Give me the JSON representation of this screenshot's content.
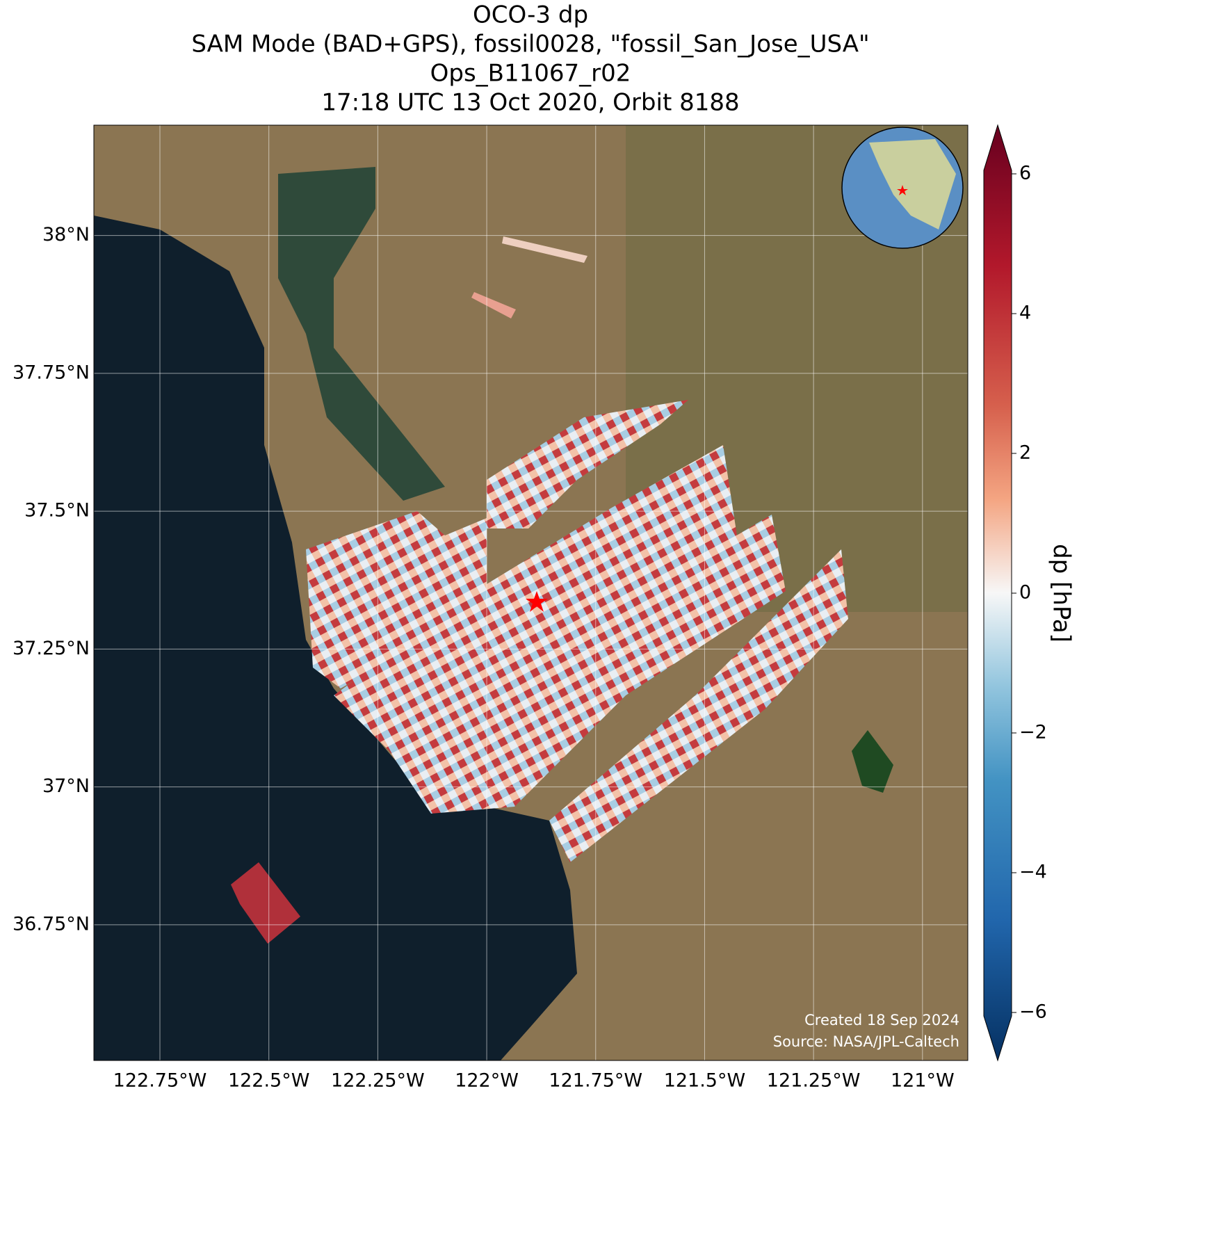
{
  "title": [
    "OCO-3 dp",
    "SAM Mode (BAD+GPS), fossil0028, \"fossil_San_Jose_USA\"",
    "Ops_B11067_r02",
    "17:18 UTC 13 Oct 2020, Orbit 8188"
  ],
  "map": {
    "xlim": [
      -122.9016,
      -120.896
    ],
    "ylim": [
      36.504,
      38.2
    ],
    "xticks": [
      {
        "value": -122.75,
        "label": "122.75°W"
      },
      {
        "value": -122.5,
        "label": "122.5°W"
      },
      {
        "value": -122.25,
        "label": "122.25°W"
      },
      {
        "value": -122,
        "label": "122°W"
      },
      {
        "value": -121.75,
        "label": "121.75°W"
      },
      {
        "value": -121.5,
        "label": "121.5°W"
      },
      {
        "value": -121.25,
        "label": "121.25°W"
      },
      {
        "value": -121,
        "label": "121°W"
      }
    ],
    "yticks": [
      {
        "value": 38,
        "label": "38°N"
      },
      {
        "value": 37.75,
        "label": "37.75°N"
      },
      {
        "value": 37.5,
        "label": "37.5°N"
      },
      {
        "value": 37.25,
        "label": "37.25°N"
      },
      {
        "value": 37,
        "label": "37°N"
      },
      {
        "value": 36.75,
        "label": "36.75°N"
      }
    ],
    "grid": true
  },
  "colorbar": {
    "label": "dp [hPa]",
    "lim": [
      -6,
      6
    ],
    "ticks": [
      {
        "value": -6,
        "label": "−6"
      },
      {
        "value": -4,
        "label": "−4"
      },
      {
        "value": -2,
        "label": "−2"
      },
      0,
      2,
      4,
      6
    ]
  },
  "credit": [
    "Created 18 Sep 2024",
    "Source: NASA/JPL-Caltech"
  ]
}
